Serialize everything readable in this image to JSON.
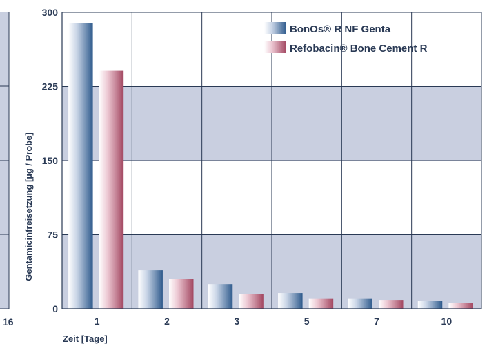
{
  "chart_data": {
    "type": "bar",
    "title": "",
    "xlabel": "Zeit [Tage]",
    "ylabel": "Gentamicinfreisetzung [µg / Probe]",
    "categories": [
      "1",
      "2",
      "3",
      "5",
      "7",
      "10"
    ],
    "series": [
      {
        "name": "BonOs® R NF Genta",
        "values": [
          289,
          39,
          25,
          16,
          10,
          8
        ],
        "color": "#2e5a8c"
      },
      {
        "name": "Refobacin® Bone Cement R",
        "values": [
          241,
          30,
          15,
          10,
          9,
          6
        ],
        "color": "#a24660"
      }
    ],
    "ylim": [
      0,
      300
    ],
    "yticks": [
      0,
      75,
      150,
      225,
      300
    ],
    "band_color": "#c9cfe0",
    "legend_position": "top-right",
    "grid": true
  },
  "clipped_panel": {
    "tick_label": "16"
  }
}
